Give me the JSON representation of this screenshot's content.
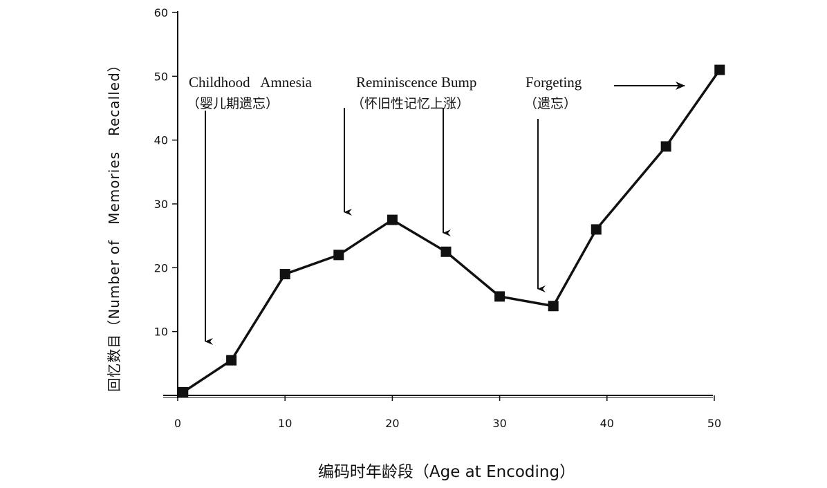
{
  "chart_data": {
    "type": "line",
    "title": "",
    "xlabel": "编码时年龄段（Age at Encoding）",
    "ylabel": "回忆数目（Number of   Memories   Recalled）",
    "xlim": [
      0,
      50
    ],
    "ylim": [
      0,
      60
    ],
    "x_ticks": [
      "0",
      "10",
      "20",
      "30",
      "40",
      "50"
    ],
    "y_ticks": [
      "10",
      "20",
      "30",
      "40",
      "50",
      "60"
    ],
    "grid": false,
    "series": [
      {
        "x": [
          0.5,
          5,
          10,
          15,
          20,
          25,
          30,
          35,
          39,
          45.5,
          50.5
        ],
        "y": [
          0.5,
          5.5,
          19,
          22,
          27.5,
          22.5,
          15.5,
          14,
          26,
          39,
          51
        ]
      }
    ],
    "annotations": [
      {
        "label": "Childhood   Amnesia",
        "sublabel": "（婴儿期遗忘）"
      },
      {
        "label": "Reminiscence Bump",
        "sublabel": "（怀旧性记忆上涨）"
      },
      {
        "label": "Forgeting",
        "sublabel": "（遗忘）"
      }
    ]
  }
}
